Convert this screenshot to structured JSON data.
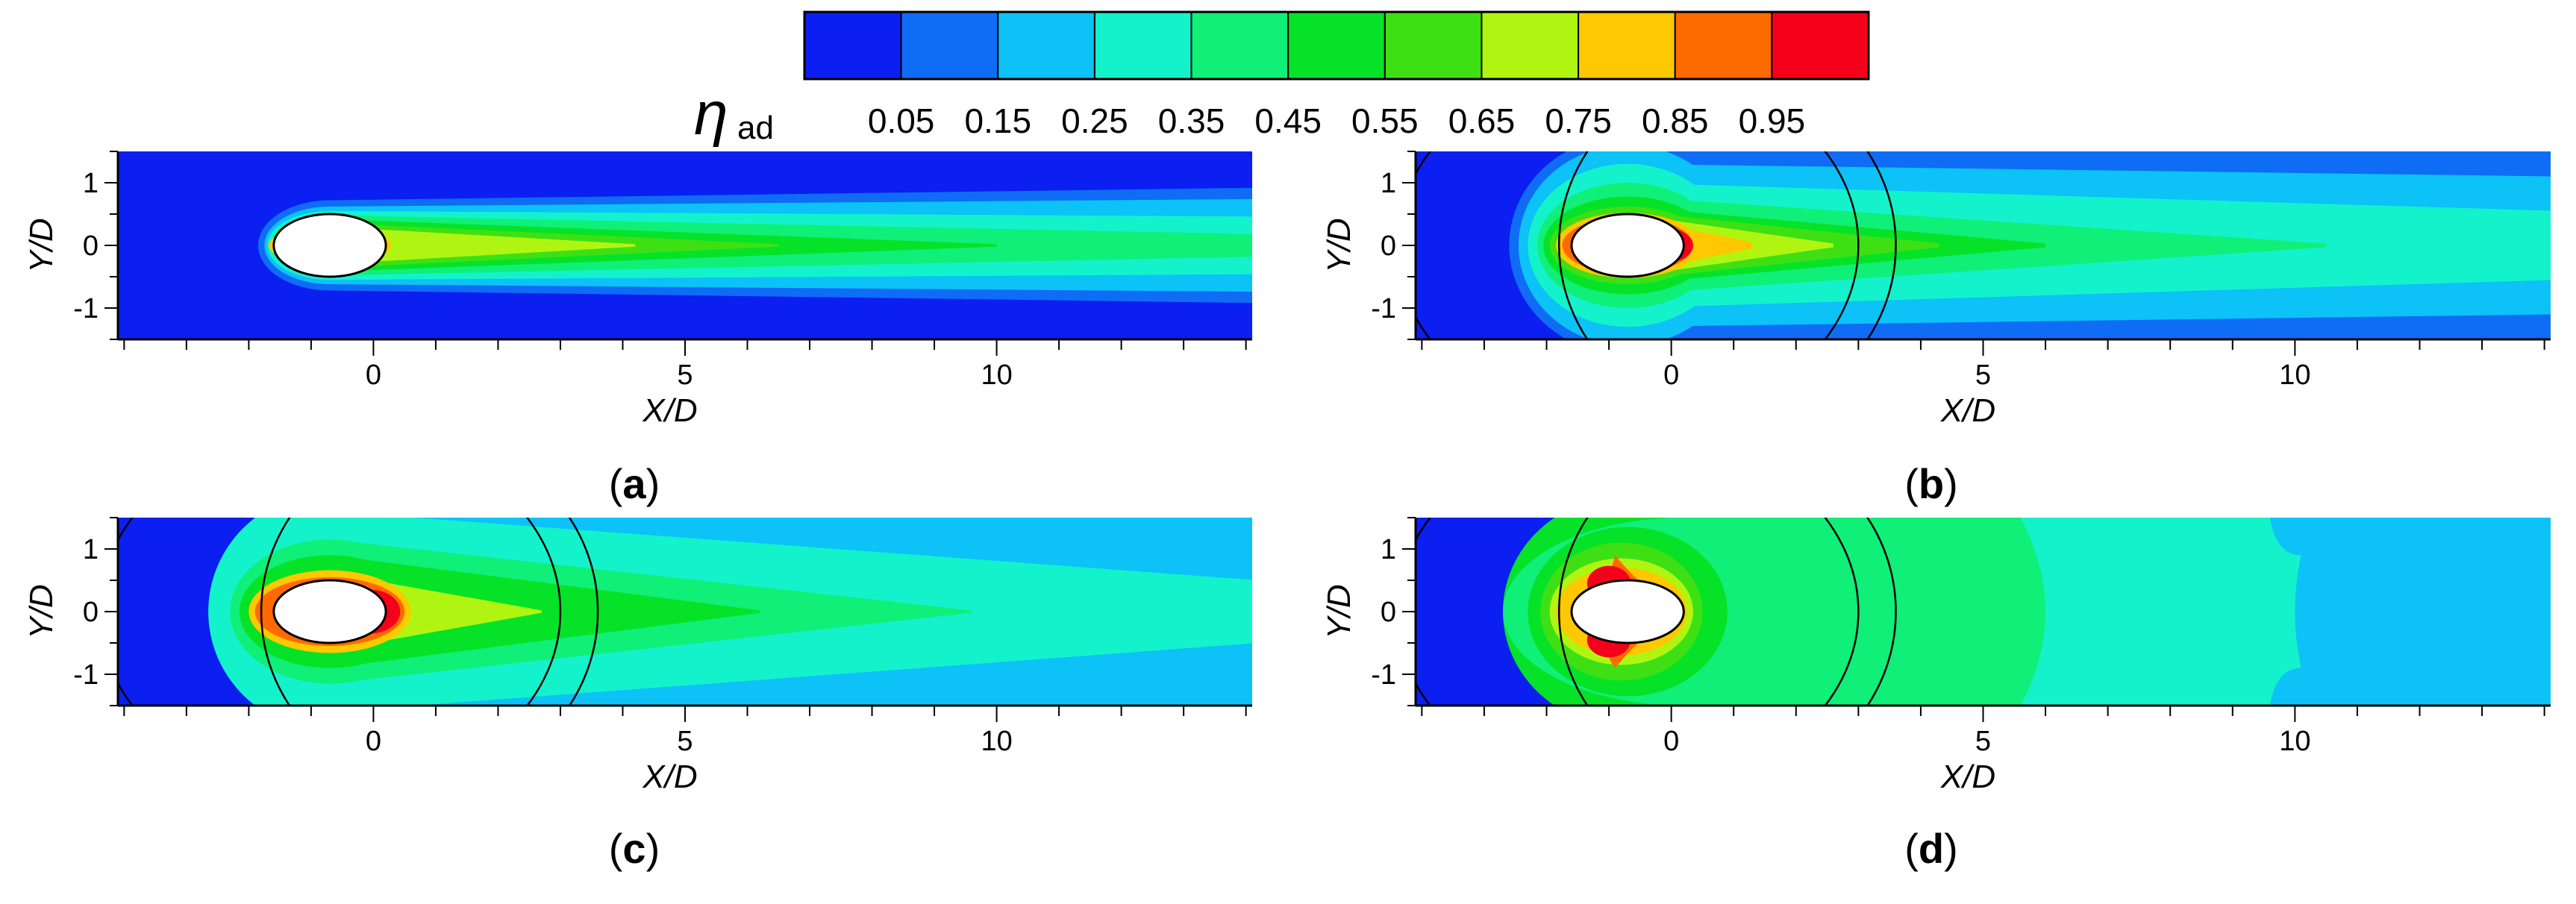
{
  "colorbar": {
    "symbol": "η",
    "subscript": "ad",
    "labels": [
      "0.05",
      "0.15",
      "0.25",
      "0.35",
      "0.45",
      "0.55",
      "0.65",
      "0.75",
      "0.85",
      "0.95"
    ],
    "colors": [
      "#0a1ff0",
      "#0f6cf5",
      "#0cc2f7",
      "#14f2cc",
      "#10ef78",
      "#06e228",
      "#3ee014",
      "#b0f512",
      "#ffc800",
      "#ff6a00",
      "#f5001b"
    ]
  },
  "chart_data": [
    {
      "type": "contour",
      "panel_label": "(a)",
      "xlabel": "X/D",
      "ylabel": "Y/D",
      "xlim": [
        -4.1,
        14.1
      ],
      "ylim": [
        -1.5,
        1.5
      ],
      "xticks": [
        0,
        5,
        10
      ],
      "yticks": [
        1,
        0,
        -1
      ],
      "hole_center": [
        -0.7,
        0
      ],
      "hole_axes": [
        0.9,
        0.5
      ],
      "show_outline": false,
      "field": "narrow jet wake: core 0.75-0.85 near hole, decaying to 0.45 by X/D≈10, ambient 0.05"
    },
    {
      "type": "contour",
      "panel_label": "(b)",
      "xlabel": "X/D",
      "ylabel": "Y/D",
      "xlim": [
        -4.1,
        14.1
      ],
      "ylim": [
        -1.5,
        1.5
      ],
      "xticks": [
        0,
        5,
        10
      ],
      "yticks": [
        1,
        0,
        -1
      ],
      "hole_center": [
        -0.7,
        0
      ],
      "hole_axes": [
        0.9,
        0.5
      ],
      "show_outline": true,
      "field": "wider wake: peak 0.95 around hole, 0.55 to X/D≈10, outer 0.35"
    },
    {
      "type": "contour",
      "panel_label": "(c)",
      "xlabel": "X/D",
      "ylabel": "Y/D",
      "xlim": [
        -4.1,
        14.1
      ],
      "ylim": [
        -1.5,
        1.5
      ],
      "xticks": [
        0,
        5,
        10
      ],
      "yticks": [
        1,
        0,
        -1
      ],
      "hole_center": [
        -0.7,
        0
      ],
      "hole_axes": [
        0.9,
        0.5
      ],
      "show_outline": true,
      "field": "full-width coverage: peak 0.95, 0.55 core to X/D≈10, background 0.35/0.25"
    },
    {
      "type": "contour",
      "panel_label": "(d)",
      "xlabel": "X/D",
      "ylabel": "Y/D",
      "xlim": [
        -4.1,
        14.1
      ],
      "ylim": [
        -1.5,
        1.5
      ],
      "xticks": [
        0,
        5,
        10
      ],
      "yticks": [
        1,
        0,
        -1
      ],
      "hole_center": [
        -0.7,
        0
      ],
      "hole_axes": [
        0.9,
        0.5
      ],
      "show_outline": true,
      "field": "uniform coverage: 0.45 region to X/D≈6, 0.35 to X/D≈10, then 0.25"
    }
  ]
}
